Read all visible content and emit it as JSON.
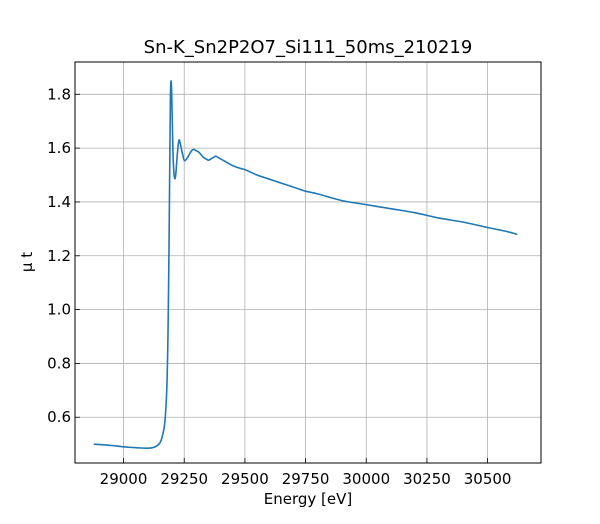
{
  "chart_data": {
    "type": "line",
    "title": "Sn-K_Sn2P2O7_Si111_50ms_210219",
    "xlabel": "Energy [eV]",
    "ylabel": "μ t",
    "xlim": [
      28800,
      30720
    ],
    "ylim": [
      0.43,
      1.92
    ],
    "xticks": [
      29000,
      29250,
      29500,
      29750,
      30000,
      30250,
      30500
    ],
    "yticks": [
      0.6,
      0.8,
      1.0,
      1.2,
      1.4,
      1.6,
      1.8
    ],
    "xtick_labels": [
      "29000",
      "29250",
      "29500",
      "29750",
      "30000",
      "30250",
      "30500"
    ],
    "ytick_labels": [
      "0.6",
      "0.8",
      "1.0",
      "1.2",
      "1.4",
      "1.6",
      "1.8"
    ],
    "grid": true,
    "series": [
      {
        "color": "#1f77b4",
        "x": [
          28880,
          28950,
          29000,
          29050,
          29100,
          29130,
          29150,
          29160,
          29170,
          29178,
          29183,
          29187,
          29190,
          29193,
          29196,
          29199,
          29202,
          29205,
          29210,
          29215,
          29220,
          29225,
          29230,
          29240,
          29250,
          29260,
          29270,
          29280,
          29290,
          29300,
          29310,
          29320,
          29330,
          29340,
          29350,
          29360,
          29370,
          29380,
          29390,
          29400,
          29420,
          29450,
          29480,
          29500,
          29550,
          29600,
          29650,
          29700,
          29750,
          29800,
          29900,
          30000,
          30100,
          30200,
          30300,
          30400,
          30500,
          30580,
          30620
        ],
        "y": [
          0.5,
          0.495,
          0.49,
          0.487,
          0.485,
          0.49,
          0.505,
          0.53,
          0.58,
          0.7,
          0.9,
          1.2,
          1.5,
          1.78,
          1.85,
          1.78,
          1.65,
          1.55,
          1.49,
          1.5,
          1.56,
          1.61,
          1.63,
          1.59,
          1.555,
          1.56,
          1.575,
          1.59,
          1.595,
          1.59,
          1.585,
          1.575,
          1.565,
          1.56,
          1.555,
          1.56,
          1.565,
          1.57,
          1.565,
          1.56,
          1.55,
          1.535,
          1.525,
          1.52,
          1.5,
          1.485,
          1.47,
          1.455,
          1.44,
          1.43,
          1.405,
          1.39,
          1.375,
          1.36,
          1.34,
          1.325,
          1.305,
          1.29,
          1.28
        ]
      }
    ]
  }
}
